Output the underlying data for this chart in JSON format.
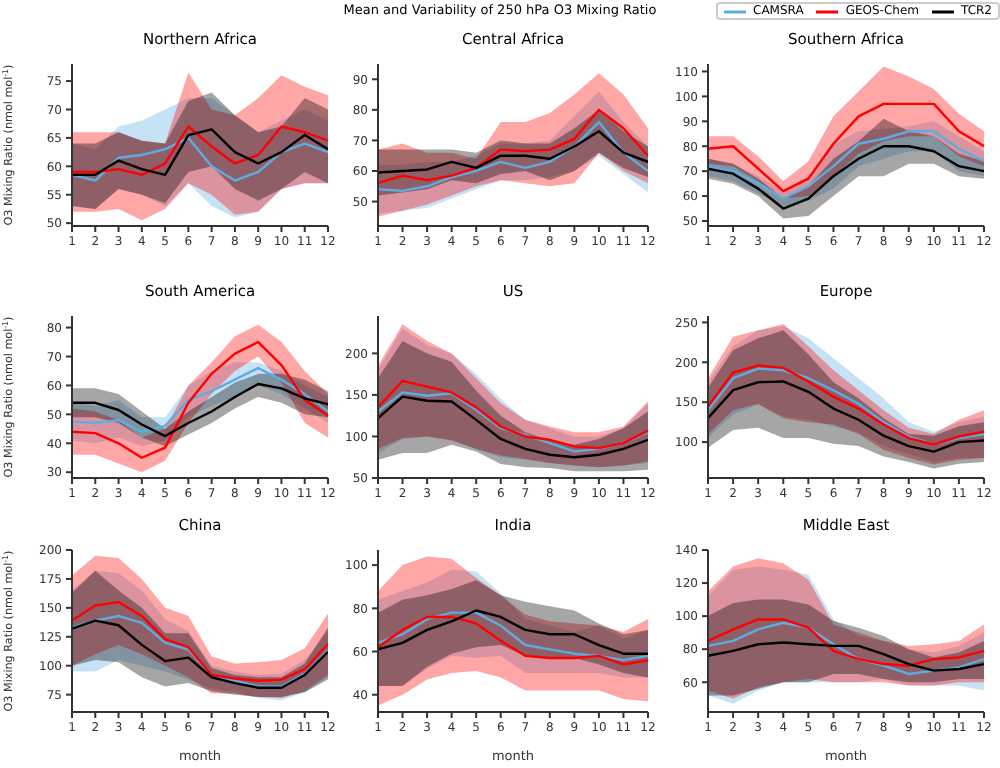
{
  "chart_data": [
    {
      "type": "line",
      "title": "Northern Africa",
      "annotations": [
        "Mean and Variability of 250 hPa O3 Mixing Ratio"
      ],
      "ylabel": "O3 Mixing Ratio (nmol mol$^{-1}$)",
      "x": [
        1,
        2,
        3,
        4,
        5,
        6,
        7,
        8,
        9,
        10,
        11,
        12
      ],
      "xlim": [
        1,
        12
      ],
      "xticks": [
        1,
        2,
        3,
        4,
        5,
        6,
        7,
        8,
        9,
        10,
        11,
        12
      ],
      "ylim": [
        49.5,
        78
      ],
      "yticks": [
        50,
        55,
        60,
        65,
        70,
        75
      ],
      "series": [
        {
          "color": "#5dade2",
          "values": [
            58.5,
            57.5,
            61.5,
            62,
            63,
            65,
            60,
            57.5,
            59,
            62.5,
            64,
            62.5
          ],
          "lower": [
            53,
            52.5,
            56,
            55,
            53,
            57,
            53,
            51,
            52,
            56,
            57,
            57
          ],
          "upper": [
            64,
            63,
            67,
            68,
            70,
            72,
            72,
            69,
            66,
            68,
            70,
            68
          ]
        },
        {
          "color": "#ff0000",
          "values": [
            59,
            59,
            59.5,
            58.5,
            60.5,
            67,
            63.5,
            60.5,
            62,
            67,
            66,
            64.5
          ],
          "lower": [
            52,
            52,
            52.5,
            50.5,
            52.5,
            57,
            55,
            51.5,
            52,
            56,
            57,
            57
          ],
          "upper": [
            66,
            66,
            66,
            64.5,
            64,
            76.5,
            70,
            69,
            72,
            76,
            74,
            72.5
          ]
        },
        {
          "color": "#000000",
          "values": [
            58.5,
            58.5,
            61,
            59.5,
            58.5,
            65.5,
            66.5,
            62.5,
            60.5,
            62.5,
            65.5,
            63
          ],
          "lower": [
            53,
            52.5,
            56,
            55,
            53.5,
            59,
            60,
            56,
            54,
            56,
            59,
            57
          ],
          "upper": [
            64,
            64,
            66,
            64.5,
            64,
            71.5,
            73,
            69,
            66,
            67,
            72,
            70
          ]
        }
      ]
    },
    {
      "type": "line",
      "title": "Central Africa",
      "x": [
        1,
        2,
        3,
        4,
        5,
        6,
        7,
        8,
        9,
        10,
        11,
        12
      ],
      "xlim": [
        1,
        12
      ],
      "xticks": [
        1,
        2,
        3,
        4,
        5,
        6,
        7,
        8,
        9,
        10,
        11,
        12
      ],
      "ylim": [
        42,
        95
      ],
      "yticks": [
        50,
        60,
        70,
        80,
        90
      ],
      "series": [
        {
          "color": "#5dade2",
          "values": [
            54,
            53.5,
            55,
            58,
            60,
            63,
            61,
            63,
            68,
            76,
            66,
            60
          ],
          "lower": [
            46,
            47,
            48,
            51,
            54,
            57,
            57,
            58,
            60,
            65,
            59,
            53
          ],
          "upper": [
            62,
            62,
            63,
            63,
            65,
            69,
            69,
            70,
            78,
            86,
            76,
            68
          ]
        },
        {
          "color": "#ff0000",
          "values": [
            56,
            58.5,
            57,
            58.5,
            61,
            67,
            66.5,
            67,
            70.5,
            80,
            74,
            65
          ],
          "lower": [
            45,
            47,
            49,
            52,
            55,
            57,
            56,
            55,
            56,
            66,
            60,
            56
          ],
          "upper": [
            67,
            69,
            66,
            66,
            64,
            76,
            76,
            79,
            85,
            92,
            85,
            74
          ]
        },
        {
          "color": "#000000",
          "values": [
            59.5,
            60,
            60.5,
            63,
            61,
            65,
            65,
            64,
            68,
            73,
            66,
            63
          ],
          "lower": [
            52,
            53,
            54,
            57,
            56,
            59,
            60,
            57,
            60,
            66,
            61,
            58
          ],
          "upper": [
            67,
            67,
            67,
            67,
            66,
            70,
            69,
            69,
            74,
            80,
            73,
            68
          ]
        }
      ]
    },
    {
      "type": "line",
      "title": "Southern Africa",
      "legend": "top right",
      "x": [
        1,
        2,
        3,
        4,
        5,
        6,
        7,
        8,
        9,
        10,
        11,
        12
      ],
      "xlim": [
        1,
        12
      ],
      "xticks": [
        1,
        2,
        3,
        4,
        5,
        6,
        7,
        8,
        9,
        10,
        11,
        12
      ],
      "ylim": [
        48,
        113
      ],
      "yticks": [
        50,
        60,
        70,
        80,
        90,
        100,
        110
      ],
      "series": [
        {
          "name": "CAMSRA",
          "color": "#5dade2",
          "values": [
            72,
            70,
            65,
            59,
            64,
            72,
            81,
            83,
            86,
            86,
            79,
            74
          ],
          "lower": [
            68,
            66,
            61,
            56,
            58,
            63,
            72,
            75,
            78,
            78,
            70,
            68
          ],
          "upper": [
            75,
            73,
            68,
            62,
            68,
            81,
            86,
            87,
            88,
            90,
            84,
            78
          ]
        },
        {
          "name": "GEOS-Chem",
          "color": "#ff0000",
          "values": [
            79,
            80,
            71,
            62,
            67,
            81,
            92,
            97,
            97,
            97,
            86,
            80
          ],
          "lower": [
            73,
            72,
            66,
            59,
            60,
            68,
            77,
            82,
            84,
            84,
            76,
            72
          ],
          "upper": [
            84,
            84,
            76,
            66,
            74,
            92,
            102,
            112,
            108,
            103,
            93,
            86
          ]
        },
        {
          "name": "TCR2",
          "color": "#000000",
          "values": [
            71,
            69,
            63,
            55,
            59,
            68,
            75,
            80,
            80,
            78,
            72,
            70
          ],
          "lower": [
            67,
            65,
            60,
            51,
            52,
            60,
            68,
            68,
            73,
            73,
            68,
            67
          ],
          "upper": [
            75,
            73,
            67,
            59,
            64,
            75,
            82,
            91,
            86,
            84,
            77,
            74
          ]
        }
      ]
    },
    {
      "type": "line",
      "title": "South America",
      "ylabel": "O3 Mixing Ratio (nmol mol$^{-1}$)",
      "x": [
        1,
        2,
        3,
        4,
        5,
        6,
        7,
        8,
        9,
        10,
        11,
        12
      ],
      "xlim": [
        1,
        12
      ],
      "xticks": [
        1,
        2,
        3,
        4,
        5,
        6,
        7,
        8,
        9,
        10,
        11,
        12
      ],
      "ylim": [
        28,
        84
      ],
      "yticks": [
        30,
        40,
        50,
        60,
        70,
        80
      ],
      "series": [
        {
          "color": "#5dade2",
          "values": [
            47.5,
            47,
            48,
            44,
            46,
            55,
            58,
            62,
            66,
            62,
            57,
            51
          ],
          "lower": [
            41,
            40,
            42,
            39,
            41,
            49,
            53,
            56,
            60,
            57,
            52,
            47
          ],
          "upper": [
            54,
            53,
            55,
            49,
            49,
            60,
            65,
            68,
            68,
            65,
            60,
            56
          ]
        },
        {
          "color": "#ff0000",
          "values": [
            44,
            43.5,
            40,
            35,
            38.5,
            54,
            64,
            71,
            75,
            67,
            55,
            49.5
          ],
          "lower": [
            36,
            36,
            33,
            30,
            34,
            47,
            57,
            65,
            70,
            61,
            47,
            42
          ],
          "upper": [
            52,
            51,
            48,
            42,
            45,
            60,
            68,
            77,
            81,
            75,
            65,
            57
          ]
        },
        {
          "color": "#000000",
          "values": [
            54,
            54,
            51.5,
            46.5,
            42.5,
            47,
            51,
            56,
            60.5,
            59,
            55.5,
            53.5
          ],
          "lower": [
            49,
            49,
            47,
            42,
            39,
            43,
            47,
            52,
            56,
            54,
            50,
            49
          ],
          "upper": [
            59,
            59,
            57,
            51,
            45,
            51,
            56,
            61,
            64,
            64,
            62,
            58
          ]
        }
      ]
    },
    {
      "type": "line",
      "title": "US",
      "x": [
        1,
        2,
        3,
        4,
        5,
        6,
        7,
        8,
        9,
        10,
        11,
        12
      ],
      "xlim": [
        1,
        12
      ],
      "xticks": [
        1,
        2,
        3,
        4,
        5,
        6,
        7,
        8,
        9,
        10,
        11,
        12
      ],
      "ylim": [
        50,
        245
      ],
      "yticks": [
        50,
        100,
        150,
        200
      ],
      "series": [
        {
          "color": "#5dade2",
          "values": [
            130,
            153,
            149,
            152,
            132,
            110,
            102,
            92,
            82,
            85,
            92,
            105
          ],
          "lower": [
            80,
            97,
            100,
            96,
            85,
            75,
            72,
            68,
            65,
            63,
            65,
            68
          ],
          "upper": [
            180,
            230,
            210,
            200,
            175,
            145,
            120,
            110,
            100,
            100,
            110,
            140
          ]
        },
        {
          "color": "#ff0000",
          "values": [
            135,
            167,
            160,
            153,
            135,
            112,
            100,
            96,
            88,
            86,
            92,
            107
          ],
          "lower": [
            85,
            98,
            100,
            95,
            85,
            77,
            73,
            68,
            65,
            63,
            65,
            70
          ],
          "upper": [
            185,
            235,
            215,
            200,
            170,
            140,
            120,
            112,
            105,
            105,
            112,
            142
          ]
        },
        {
          "color": "#000000",
          "values": [
            122,
            148,
            143,
            142,
            120,
            97,
            85,
            78,
            75,
            78,
            85,
            96
          ],
          "lower": [
            72,
            80,
            80,
            90,
            82,
            67,
            63,
            62,
            58,
            58,
            58,
            60
          ],
          "upper": [
            170,
            215,
            200,
            190,
            155,
            125,
            105,
            95,
            90,
            97,
            110,
            130
          ]
        }
      ]
    },
    {
      "type": "line",
      "title": "Europe",
      "x": [
        1,
        2,
        3,
        4,
        5,
        6,
        7,
        8,
        9,
        10,
        11,
        12
      ],
      "xlim": [
        1,
        12
      ],
      "xticks": [
        1,
        2,
        3,
        4,
        5,
        6,
        7,
        8,
        9,
        10,
        11,
        12
      ],
      "ylim": [
        55,
        258
      ],
      "yticks": [
        100,
        150,
        200,
        250
      ],
      "series": [
        {
          "color": "#5dade2",
          "values": [
            140,
            180,
            192,
            190,
            180,
            165,
            148,
            125,
            107,
            97,
            105,
            110
          ],
          "lower": [
            105,
            135,
            147,
            132,
            128,
            120,
            112,
            95,
            85,
            75,
            80,
            80
          ],
          "upper": [
            175,
            220,
            240,
            245,
            230,
            205,
            180,
            155,
            125,
            113,
            125,
            132
          ]
        },
        {
          "color": "#ff0000",
          "values": [
            145,
            187,
            196,
            193,
            176,
            157,
            142,
            122,
            105,
            97,
            107,
            113
          ],
          "lower": [
            110,
            140,
            148,
            130,
            125,
            122,
            110,
            90,
            80,
            72,
            78,
            80
          ],
          "upper": [
            180,
            232,
            240,
            248,
            220,
            190,
            165,
            140,
            118,
            110,
            128,
            140
          ]
        },
        {
          "color": "#000000",
          "values": [
            130,
            165,
            175,
            176,
            163,
            142,
            128,
            108,
            95,
            88,
            100,
            102
          ],
          "lower": [
            93,
            115,
            118,
            105,
            105,
            98,
            95,
            82,
            75,
            67,
            73,
            75
          ],
          "upper": [
            168,
            215,
            230,
            240,
            210,
            175,
            155,
            130,
            110,
            108,
            120,
            125
          ]
        }
      ]
    },
    {
      "type": "line",
      "title": "China",
      "xlabel": "month",
      "ylabel": "O3 Mixing Ratio (nmol mol$^{-1}$)",
      "x": [
        1,
        2,
        3,
        4,
        5,
        6,
        7,
        8,
        9,
        10,
        11,
        12
      ],
      "xlim": [
        1,
        12
      ],
      "xticks": [
        1,
        2,
        3,
        4,
        5,
        6,
        7,
        8,
        9,
        10,
        11,
        12
      ],
      "ylim": [
        60,
        200
      ],
      "yticks": [
        75,
        100,
        125,
        150,
        175,
        200
      ],
      "series": [
        {
          "color": "#5dade2",
          "values": [
            133,
            139,
            143,
            137,
            120,
            114,
            92,
            87,
            82,
            82,
            93,
            113
          ],
          "lower": [
            95,
            95,
            105,
            100,
            95,
            88,
            80,
            77,
            72,
            70,
            77,
            90
          ],
          "upper": [
            165,
            182,
            180,
            165,
            140,
            130,
            100,
            95,
            92,
            93,
            105,
            130
          ]
        },
        {
          "color": "#ff0000",
          "values": [
            139,
            152,
            155,
            143,
            123,
            116,
            92,
            89,
            87,
            88,
            97,
            119
          ],
          "lower": [
            100,
            110,
            118,
            110,
            100,
            90,
            76,
            76,
            73,
            72,
            78,
            92
          ],
          "upper": [
            178,
            195,
            193,
            175,
            150,
            143,
            108,
            102,
            103,
            105,
            115,
            145
          ]
        },
        {
          "color": "#000000",
          "values": [
            132,
            139,
            135,
            118,
            104,
            107,
            90,
            85,
            81,
            81,
            92,
            112
          ],
          "lower": [
            100,
            105,
            103,
            90,
            82,
            85,
            78,
            75,
            73,
            73,
            77,
            88
          ],
          "upper": [
            163,
            182,
            165,
            150,
            128,
            128,
            98,
            92,
            90,
            90,
            102,
            133
          ]
        }
      ]
    },
    {
      "type": "line",
      "title": "India",
      "xlabel": "month",
      "x": [
        1,
        2,
        3,
        4,
        5,
        6,
        7,
        8,
        9,
        10,
        11,
        12
      ],
      "xlim": [
        1,
        12
      ],
      "xticks": [
        1,
        2,
        3,
        4,
        5,
        6,
        7,
        8,
        9,
        10,
        11,
        12
      ],
      "ylim": [
        32,
        107
      ],
      "yticks": [
        40,
        60,
        80,
        100
      ],
      "series": [
        {
          "color": "#5dade2",
          "values": [
            64,
            68,
            75,
            78,
            78,
            72,
            63,
            61,
            59,
            58,
            56,
            58
          ],
          "lower": [
            44,
            44,
            52,
            58,
            57,
            58,
            50,
            50,
            50,
            50,
            48,
            48
          ],
          "upper": [
            84,
            88,
            92,
            98,
            97,
            87,
            75,
            72,
            69,
            72,
            66,
            70
          ]
        },
        {
          "color": "#ff0000",
          "values": [
            62,
            70,
            76,
            76,
            73,
            65,
            58,
            57,
            57,
            58,
            54,
            56
          ],
          "lower": [
            35,
            40,
            47,
            50,
            51,
            48,
            42,
            42,
            42,
            42,
            38,
            37
          ],
          "upper": [
            88,
            100,
            104,
            103,
            94,
            86,
            77,
            74,
            73,
            72,
            69,
            75
          ]
        },
        {
          "color": "#000000",
          "values": [
            61,
            64,
            70,
            74,
            79,
            76,
            70,
            68,
            68,
            63,
            59,
            59
          ],
          "lower": [
            44,
            44,
            53,
            59,
            62,
            63,
            58,
            57,
            57,
            54,
            50,
            48
          ],
          "upper": [
            78,
            84,
            86,
            89,
            93,
            86,
            83,
            81,
            79,
            73,
            68,
            70
          ]
        }
      ]
    },
    {
      "type": "line",
      "title": "Middle East",
      "xlabel": "month",
      "x": [
        1,
        2,
        3,
        4,
        5,
        6,
        7,
        8,
        9,
        10,
        11,
        12
      ],
      "xlim": [
        1,
        12
      ],
      "xticks": [
        1,
        2,
        3,
        4,
        5,
        6,
        7,
        8,
        9,
        10,
        11,
        12
      ],
      "ylim": [
        42,
        140
      ],
      "yticks": [
        60,
        80,
        100,
        120,
        140
      ],
      "series": [
        {
          "color": "#5dade2",
          "values": [
            82,
            85,
            92,
            96,
            93,
            83,
            74,
            70,
            65,
            67,
            69,
            74
          ],
          "lower": [
            52,
            47,
            55,
            60,
            60,
            60,
            60,
            62,
            58,
            58,
            58,
            55
          ],
          "upper": [
            112,
            128,
            130,
            128,
            125,
            98,
            88,
            85,
            80,
            78,
            82,
            90
          ]
        },
        {
          "color": "#ff0000",
          "values": [
            85,
            92,
            98,
            98,
            93,
            79,
            74,
            71,
            70,
            74,
            75,
            79
          ],
          "lower": [
            55,
            50,
            57,
            60,
            62,
            60,
            60,
            60,
            58,
            58,
            60,
            60
          ],
          "upper": [
            115,
            130,
            135,
            132,
            122,
            95,
            90,
            85,
            82,
            83,
            85,
            95
          ]
        },
        {
          "color": "#000000",
          "values": [
            76,
            79,
            83,
            84,
            83,
            82,
            82,
            77,
            71,
            67,
            68,
            71
          ],
          "lower": [
            52,
            52,
            56,
            60,
            60,
            65,
            65,
            62,
            60,
            60,
            62,
            62
          ],
          "upper": [
            100,
            108,
            110,
            110,
            107,
            97,
            93,
            88,
            80,
            75,
            78,
            85
          ]
        }
      ]
    }
  ]
}
